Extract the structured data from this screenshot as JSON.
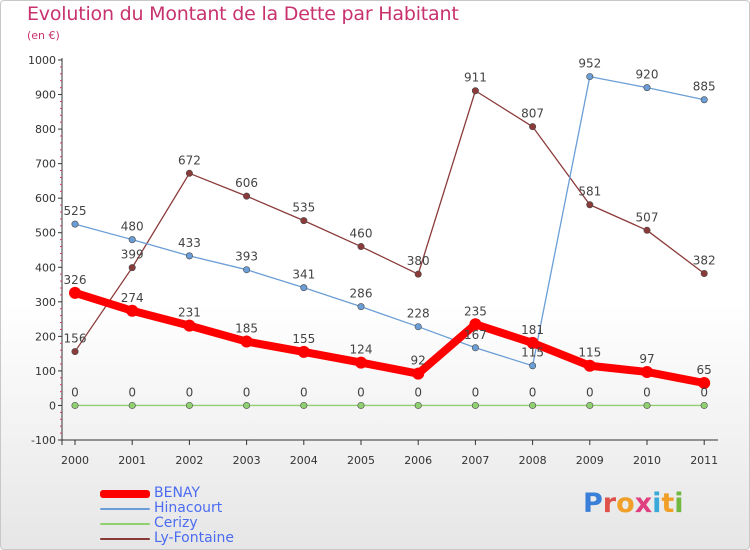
{
  "title": "Evolution du Montant de la Dette par Habitant",
  "subtitle": "(en €)",
  "logo": "Proxiti",
  "chart_data": {
    "type": "line",
    "categories": [
      "2000",
      "2001",
      "2002",
      "2003",
      "2004",
      "2005",
      "2006",
      "2007",
      "2008",
      "2009",
      "2010",
      "2011"
    ],
    "ylim": [
      -100,
      1000
    ],
    "yticks": [
      -100,
      0,
      100,
      200,
      300,
      400,
      500,
      600,
      700,
      800,
      900,
      1000
    ],
    "grid": false,
    "legend_position": "bottom-left",
    "series": [
      {
        "name": "BENAY",
        "color": "#ff0000",
        "values": [
          326,
          274,
          231,
          185,
          155,
          124,
          92,
          235,
          181,
          115,
          97,
          65
        ]
      },
      {
        "name": "Hinacourt",
        "color": "#6b9ed6",
        "values": [
          525,
          480,
          433,
          393,
          341,
          286,
          228,
          167,
          115,
          952,
          920,
          885
        ]
      },
      {
        "name": "Cerizy",
        "color": "#90d070",
        "values": [
          0,
          0,
          0,
          0,
          0,
          0,
          0,
          0,
          0,
          0,
          0,
          0
        ]
      },
      {
        "name": "Ly-Fontaine",
        "color": "#8b3a3a",
        "values": [
          156,
          399,
          672,
          606,
          535,
          460,
          380,
          911,
          807,
          581,
          507,
          382
        ]
      }
    ]
  }
}
